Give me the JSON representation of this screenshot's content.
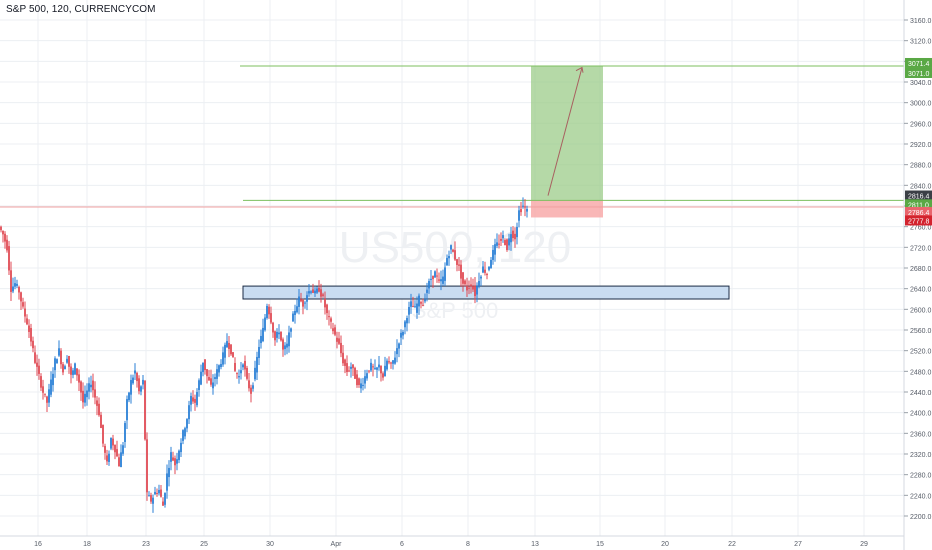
{
  "header": {
    "symbol_title": "S&P 500, 120, CURRENCYCOM"
  },
  "watermark": {
    "symbol": "US500, 120",
    "name": "S&P 500"
  },
  "colors": {
    "up": "#2a7fd6",
    "down": "#e04a54",
    "grid": "#eceff3",
    "axis_text": "#555b66",
    "target_line": "#7cbf5f",
    "entry_line": "#7cbf5f",
    "price_line": "#f2a0a0",
    "target_zone": "#9ccc8a",
    "stop_zone": "#f7a5a5",
    "arrow": "#a86060",
    "support_fill": "#c9dcf1",
    "support_stroke": "#1a2a44"
  },
  "chart_data": {
    "type": "candlestick",
    "title": "S&P 500, 120, CURRENCYCOM",
    "ylim": [
      2180,
      3180
    ],
    "y_ticks": [
      3160,
      3120,
      3080,
      3040,
      3000,
      2960,
      2920,
      2880,
      2840,
      2800,
      2760,
      2720,
      2680,
      2640,
      2600,
      2560,
      2520,
      2480,
      2440,
      2400,
      2360,
      2320,
      2280,
      2240,
      2200
    ],
    "x_tick_labels": [
      "16",
      "18",
      "23",
      "25",
      "30",
      "Apr",
      "6",
      "8",
      "13",
      "15",
      "20",
      "22",
      "27",
      "29"
    ],
    "grid": true,
    "price_path": [
      [
        0,
        2760
      ],
      [
        4,
        2745
      ],
      [
        8,
        2720
      ],
      [
        12,
        2640
      ],
      [
        16,
        2650
      ],
      [
        20,
        2635
      ],
      [
        24,
        2600
      ],
      [
        28,
        2575
      ],
      [
        32,
        2540
      ],
      [
        36,
        2500
      ],
      [
        40,
        2470
      ],
      [
        44,
        2440
      ],
      [
        48,
        2420
      ],
      [
        52,
        2460
      ],
      [
        56,
        2500
      ],
      [
        60,
        2520
      ],
      [
        64,
        2480
      ],
      [
        68,
        2510
      ],
      [
        72,
        2470
      ],
      [
        76,
        2490
      ],
      [
        80,
        2460
      ],
      [
        84,
        2420
      ],
      [
        88,
        2440
      ],
      [
        92,
        2460
      ],
      [
        96,
        2430
      ],
      [
        100,
        2400
      ],
      [
        104,
        2340
      ],
      [
        108,
        2300
      ],
      [
        112,
        2350
      ],
      [
        116,
        2330
      ],
      [
        120,
        2300
      ],
      [
        124,
        2340
      ],
      [
        128,
        2420
      ],
      [
        132,
        2460
      ],
      [
        136,
        2480
      ],
      [
        140,
        2440
      ],
      [
        144,
        2460
      ],
      [
        148,
        2240
      ],
      [
        152,
        2230
      ],
      [
        156,
        2245
      ],
      [
        160,
        2250
      ],
      [
        164,
        2220
      ],
      [
        168,
        2280
      ],
      [
        172,
        2320
      ],
      [
        176,
        2300
      ],
      [
        180,
        2330
      ],
      [
        184,
        2360
      ],
      [
        188,
        2390
      ],
      [
        192,
        2430
      ],
      [
        196,
        2420
      ],
      [
        200,
        2460
      ],
      [
        204,
        2500
      ],
      [
        208,
        2470
      ],
      [
        212,
        2450
      ],
      [
        216,
        2470
      ],
      [
        220,
        2490
      ],
      [
        224,
        2510
      ],
      [
        228,
        2540
      ],
      [
        232,
        2520
      ],
      [
        236,
        2480
      ],
      [
        240,
        2470
      ],
      [
        244,
        2500
      ],
      [
        248,
        2460
      ],
      [
        252,
        2440
      ],
      [
        256,
        2480
      ],
      [
        260,
        2530
      ],
      [
        264,
        2560
      ],
      [
        268,
        2610
      ],
      [
        272,
        2580
      ],
      [
        276,
        2540
      ],
      [
        280,
        2560
      ],
      [
        284,
        2520
      ],
      [
        288,
        2530
      ],
      [
        292,
        2570
      ],
      [
        296,
        2600
      ],
      [
        300,
        2620
      ],
      [
        304,
        2610
      ],
      [
        308,
        2630
      ],
      [
        312,
        2640
      ],
      [
        316,
        2630
      ],
      [
        320,
        2640
      ],
      [
        324,
        2620
      ],
      [
        328,
        2590
      ],
      [
        332,
        2570
      ],
      [
        336,
        2550
      ],
      [
        340,
        2530
      ],
      [
        344,
        2500
      ],
      [
        348,
        2480
      ],
      [
        352,
        2490
      ],
      [
        356,
        2470
      ],
      [
        360,
        2450
      ],
      [
        364,
        2460
      ],
      [
        368,
        2480
      ],
      [
        372,
        2490
      ],
      [
        376,
        2480
      ],
      [
        380,
        2490
      ],
      [
        384,
        2470
      ],
      [
        388,
        2500
      ],
      [
        392,
        2490
      ],
      [
        396,
        2510
      ],
      [
        400,
        2540
      ],
      [
        404,
        2560
      ],
      [
        408,
        2590
      ],
      [
        412,
        2610
      ],
      [
        416,
        2600
      ],
      [
        420,
        2620
      ],
      [
        424,
        2610
      ],
      [
        428,
        2640
      ],
      [
        432,
        2660
      ],
      [
        436,
        2670
      ],
      [
        440,
        2650
      ],
      [
        444,
        2660
      ],
      [
        448,
        2700
      ],
      [
        452,
        2720
      ],
      [
        456,
        2700
      ],
      [
        460,
        2680
      ],
      [
        464,
        2650
      ],
      [
        468,
        2640
      ],
      [
        472,
        2650
      ],
      [
        476,
        2630
      ],
      [
        480,
        2660
      ],
      [
        484,
        2680
      ],
      [
        488,
        2670
      ],
      [
        492,
        2700
      ],
      [
        496,
        2720
      ],
      [
        500,
        2730
      ],
      [
        504,
        2740
      ],
      [
        508,
        2720
      ],
      [
        512,
        2750
      ],
      [
        516,
        2740
      ],
      [
        520,
        2790
      ],
      [
        524,
        2800
      ],
      [
        528,
        2790
      ]
    ],
    "annotations": {
      "target_price": 3071.0,
      "target_label_upper": "3071.4",
      "target_label_lower": "3071.0",
      "entry_price": 2811.0,
      "entry_label": "2811.0",
      "current_price": 2816.4,
      "current_label": "2816.4",
      "stop_upper": 2786.4,
      "stop_upper_label": "2786.4",
      "stop_lower": 2777.8,
      "stop_lower_label": "2777.8",
      "support_zone": [
        2620,
        2645
      ]
    }
  }
}
